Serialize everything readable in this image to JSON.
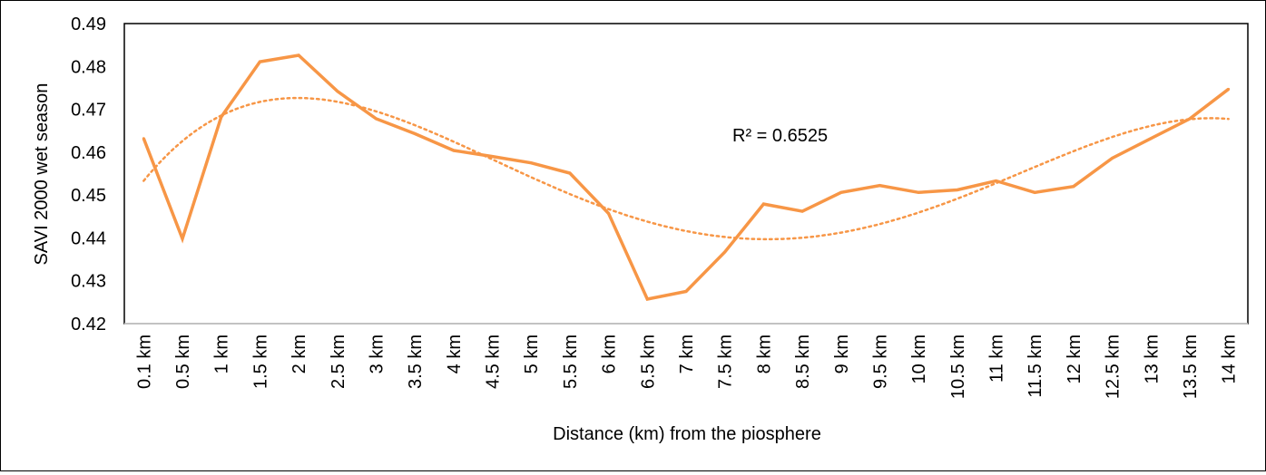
{
  "chart_data": {
    "type": "line",
    "title": "",
    "xlabel": "Distance (km) from the piosphere",
    "ylabel": "SAVI 2000 wet season",
    "ylim": [
      0.42,
      0.49
    ],
    "yticks": [
      "0.42",
      "0.43",
      "0.44",
      "0.45",
      "0.46",
      "0.47",
      "0.48",
      "0.49"
    ],
    "grid": false,
    "categories": [
      "0.1 km",
      "0.5 km",
      "1 km",
      "1.5 km",
      "2 km",
      "2.5 km",
      "3 km",
      "3.5 km",
      "4 km",
      "4.5 km",
      "5 km",
      "5.5 km",
      "6 km",
      "6.5 km",
      "7 km",
      "7.5 km",
      "8 km",
      "8.5 km",
      "9 km",
      "9.5 km",
      "10 km",
      "10.5 km",
      "11 km",
      "11.5 km",
      "12 km",
      "12.5 km",
      "13 km",
      "13.5 km",
      "14 km"
    ],
    "series": [
      {
        "values": [
          0.4632,
          0.4398,
          0.4682,
          0.4811,
          0.4826,
          0.4742,
          0.4678,
          0.4643,
          0.4604,
          0.459,
          0.4575,
          0.4551,
          0.4457,
          0.4257,
          0.4275,
          0.4367,
          0.4479,
          0.4462,
          0.4506,
          0.4522,
          0.4506,
          0.4512,
          0.4533,
          0.4506,
          0.452,
          0.4586,
          0.4632,
          0.4678,
          0.4747
        ],
        "color": "#F79646"
      }
    ],
    "trendline": {
      "type": "polynomial",
      "order": 4,
      "style": "dotted",
      "color": "#F79646",
      "label": "R² = 0.6525"
    }
  }
}
